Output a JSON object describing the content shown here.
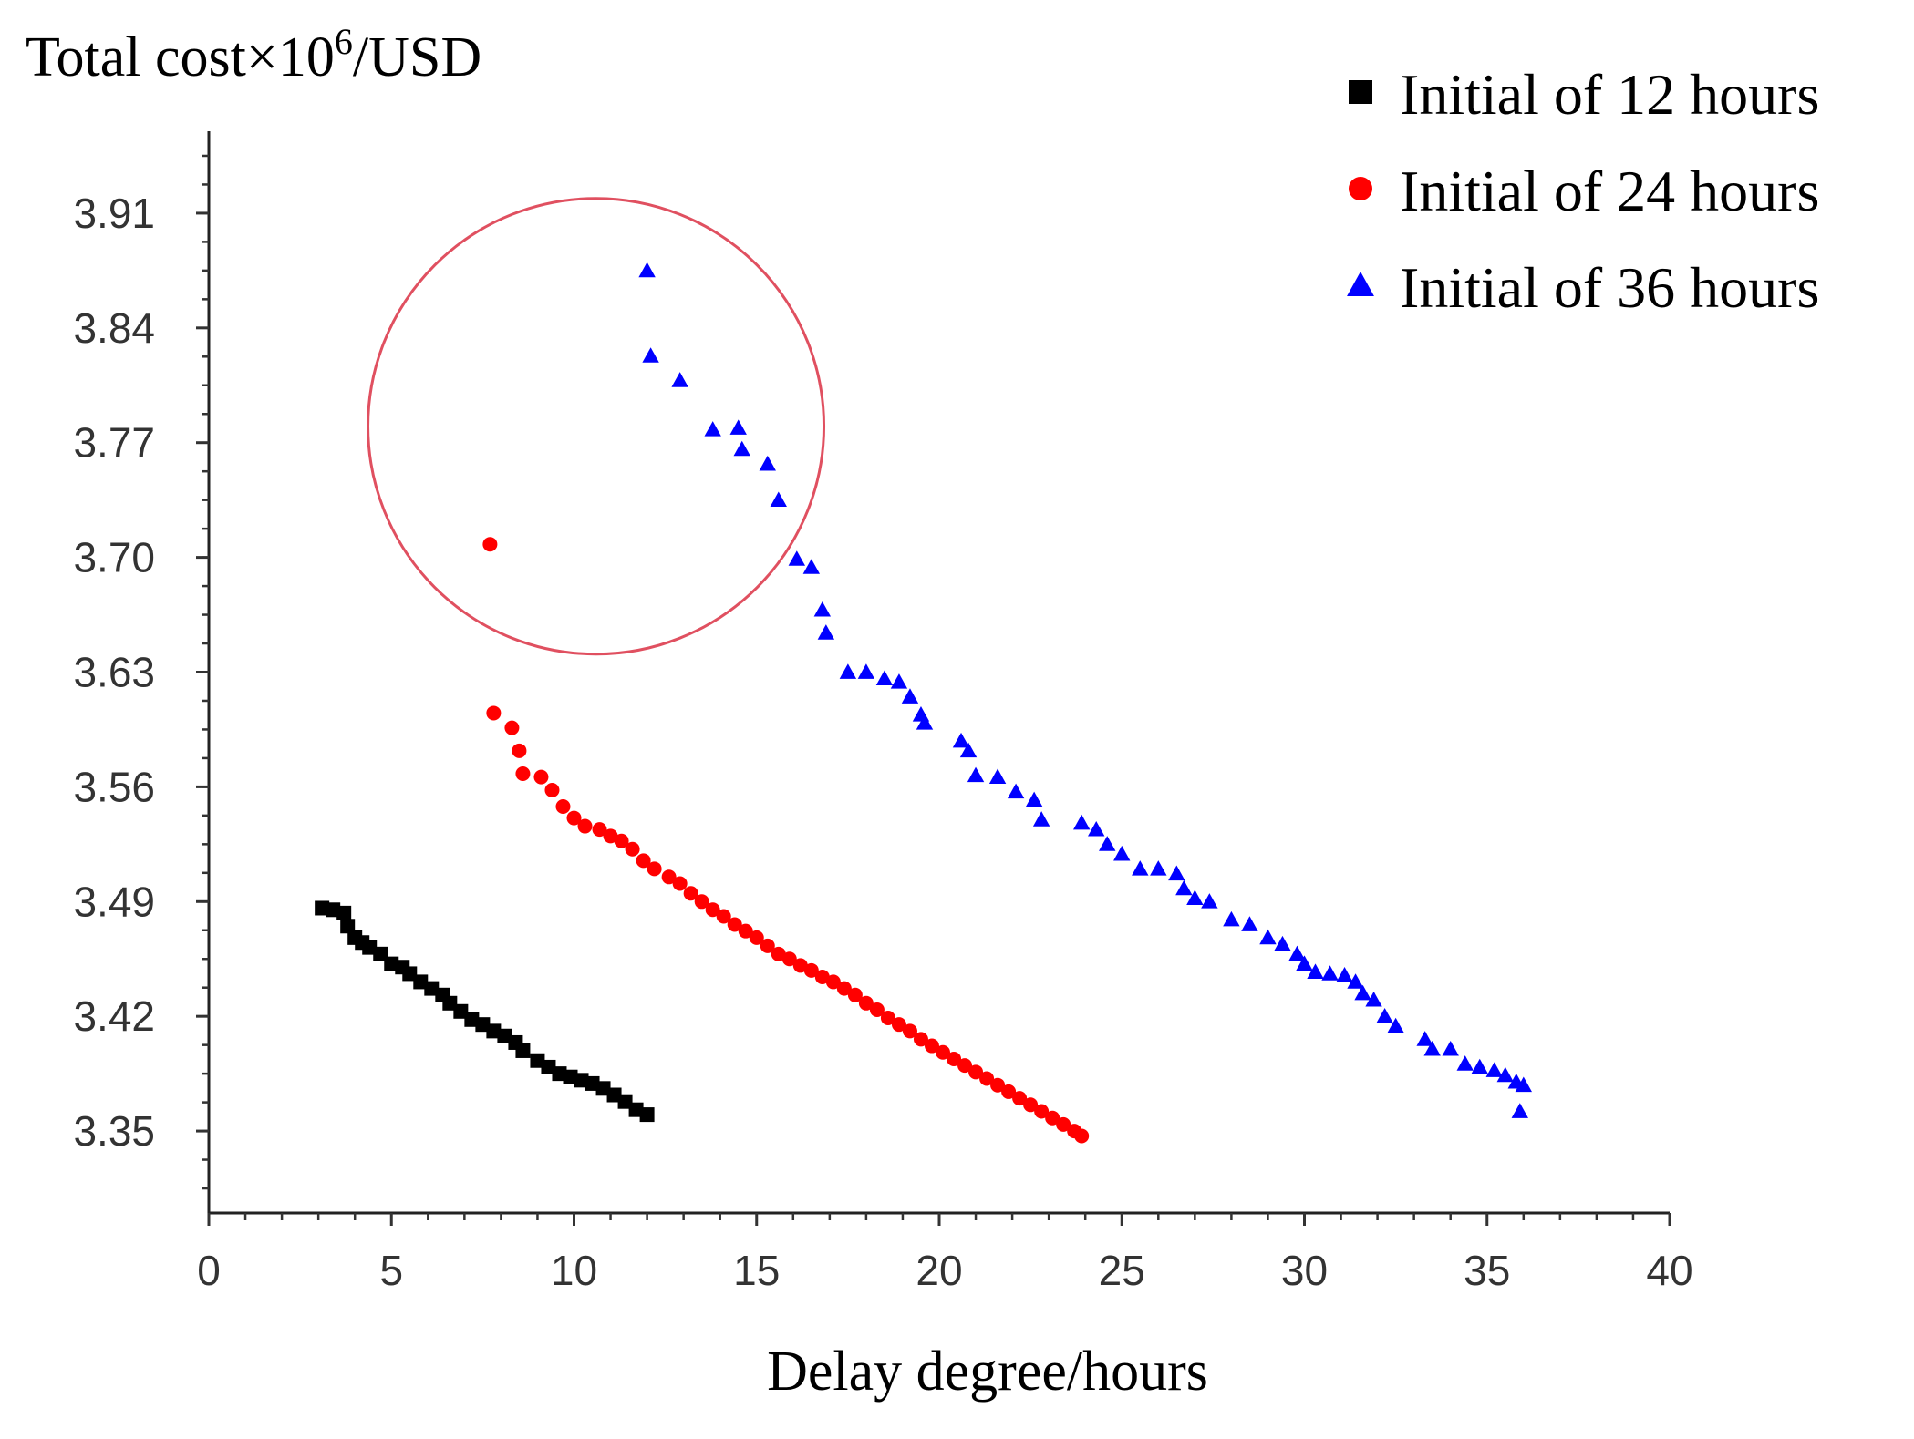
{
  "chart_data": {
    "type": "scatter",
    "ylabel": "Total cost×10",
    "ylabel_sup": "6",
    "ylabel_unit": "/USD",
    "xlabel": "Delay degree/hours",
    "xlim": [
      0,
      40
    ],
    "ylim": [
      3.3,
      3.96
    ],
    "x_ticks": [
      0,
      5,
      10,
      15,
      20,
      25,
      30,
      35,
      40
    ],
    "x_tick_labels": [
      "0",
      "5",
      "10",
      "15",
      "20",
      "25",
      "30",
      "35",
      "40"
    ],
    "y_ticks": [
      3.35,
      3.42,
      3.49,
      3.56,
      3.63,
      3.7,
      3.77,
      3.84,
      3.91
    ],
    "y_tick_labels": [
      "3.35",
      "3.42",
      "3.49",
      "3.56",
      "3.63",
      "3.70",
      "3.77",
      "3.84",
      "3.91"
    ],
    "grid": false,
    "legend_position": "top-right",
    "annotation": {
      "type": "circle",
      "center": [
        10.6,
        3.78
      ],
      "color": "#e05060"
    },
    "series": [
      {
        "name": "Initial of 12 hours",
        "marker": "square",
        "color": "#000000",
        "points": [
          [
            3.1,
            3.486
          ],
          [
            3.4,
            3.485
          ],
          [
            3.7,
            3.483
          ],
          [
            3.8,
            3.475
          ],
          [
            4.0,
            3.468
          ],
          [
            4.2,
            3.465
          ],
          [
            4.4,
            3.462
          ],
          [
            4.7,
            3.458
          ],
          [
            5.0,
            3.452
          ],
          [
            5.3,
            3.45
          ],
          [
            5.5,
            3.446
          ],
          [
            5.8,
            3.441
          ],
          [
            6.1,
            3.437
          ],
          [
            6.4,
            3.433
          ],
          [
            6.6,
            3.428
          ],
          [
            6.9,
            3.423
          ],
          [
            7.2,
            3.418
          ],
          [
            7.5,
            3.415
          ],
          [
            7.8,
            3.411
          ],
          [
            8.1,
            3.408
          ],
          [
            8.4,
            3.404
          ],
          [
            8.6,
            3.399
          ],
          [
            9.0,
            3.393
          ],
          [
            9.3,
            3.389
          ],
          [
            9.6,
            3.385
          ],
          [
            9.9,
            3.383
          ],
          [
            10.2,
            3.381
          ],
          [
            10.5,
            3.379
          ],
          [
            10.8,
            3.376
          ],
          [
            11.1,
            3.372
          ],
          [
            11.4,
            3.368
          ],
          [
            11.7,
            3.363
          ],
          [
            12.0,
            3.36
          ]
        ]
      },
      {
        "name": "Initial of 24 hours",
        "marker": "circle",
        "color": "#ff0000",
        "points": [
          [
            7.7,
            3.708
          ],
          [
            7.8,
            3.605
          ],
          [
            8.3,
            3.596
          ],
          [
            8.5,
            3.582
          ],
          [
            8.6,
            3.568
          ],
          [
            9.1,
            3.566
          ],
          [
            9.4,
            3.558
          ],
          [
            9.7,
            3.548
          ],
          [
            10.0,
            3.541
          ],
          [
            10.3,
            3.536
          ],
          [
            10.7,
            3.534
          ],
          [
            11.0,
            3.53
          ],
          [
            11.3,
            3.527
          ],
          [
            11.6,
            3.522
          ],
          [
            11.9,
            3.515
          ],
          [
            12.2,
            3.51
          ],
          [
            12.6,
            3.505
          ],
          [
            12.9,
            3.501
          ],
          [
            13.2,
            3.495
          ],
          [
            13.5,
            3.49
          ],
          [
            13.8,
            3.485
          ],
          [
            14.1,
            3.481
          ],
          [
            14.4,
            3.476
          ],
          [
            14.7,
            3.472
          ],
          [
            15.0,
            3.468
          ],
          [
            15.3,
            3.463
          ],
          [
            15.6,
            3.458
          ],
          [
            15.9,
            3.455
          ],
          [
            16.2,
            3.451
          ],
          [
            16.5,
            3.448
          ],
          [
            16.8,
            3.444
          ],
          [
            17.1,
            3.441
          ],
          [
            17.4,
            3.437
          ],
          [
            17.7,
            3.433
          ],
          [
            18.0,
            3.428
          ],
          [
            18.3,
            3.424
          ],
          [
            18.6,
            3.419
          ],
          [
            18.9,
            3.415
          ],
          [
            19.2,
            3.411
          ],
          [
            19.5,
            3.406
          ],
          [
            19.8,
            3.402
          ],
          [
            20.1,
            3.398
          ],
          [
            20.4,
            3.394
          ],
          [
            20.7,
            3.39
          ],
          [
            21.0,
            3.386
          ],
          [
            21.3,
            3.382
          ],
          [
            21.6,
            3.378
          ],
          [
            21.9,
            3.374
          ],
          [
            22.2,
            3.37
          ],
          [
            22.5,
            3.366
          ],
          [
            22.8,
            3.362
          ],
          [
            23.1,
            3.358
          ],
          [
            23.4,
            3.354
          ],
          [
            23.7,
            3.35
          ],
          [
            23.9,
            3.347
          ]
        ]
      },
      {
        "name": "Initial of 36 hours",
        "marker": "triangle",
        "color": "#0000ff",
        "points": [
          [
            12.0,
            3.875
          ],
          [
            12.1,
            3.823
          ],
          [
            12.9,
            3.808
          ],
          [
            13.8,
            3.778
          ],
          [
            14.5,
            3.779
          ],
          [
            14.6,
            3.766
          ],
          [
            15.3,
            3.757
          ],
          [
            15.6,
            3.735
          ],
          [
            16.1,
            3.699
          ],
          [
            16.5,
            3.694
          ],
          [
            16.8,
            3.668
          ],
          [
            16.9,
            3.654
          ],
          [
            17.5,
            3.63
          ],
          [
            18.0,
            3.63
          ],
          [
            18.5,
            3.626
          ],
          [
            18.9,
            3.624
          ],
          [
            19.2,
            3.615
          ],
          [
            19.5,
            3.604
          ],
          [
            19.6,
            3.599
          ],
          [
            20.6,
            3.588
          ],
          [
            20.8,
            3.582
          ],
          [
            21.0,
            3.567
          ],
          [
            21.6,
            3.566
          ],
          [
            22.1,
            3.557
          ],
          [
            22.6,
            3.552
          ],
          [
            22.8,
            3.54
          ],
          [
            23.9,
            3.538
          ],
          [
            24.3,
            3.534
          ],
          [
            24.6,
            3.525
          ],
          [
            25.0,
            3.519
          ],
          [
            25.5,
            3.51
          ],
          [
            26.0,
            3.51
          ],
          [
            26.5,
            3.507
          ],
          [
            26.7,
            3.498
          ],
          [
            27.0,
            3.492
          ],
          [
            27.4,
            3.49
          ],
          [
            28.0,
            3.479
          ],
          [
            28.5,
            3.476
          ],
          [
            29.0,
            3.468
          ],
          [
            29.4,
            3.464
          ],
          [
            29.8,
            3.458
          ],
          [
            30.0,
            3.452
          ],
          [
            30.3,
            3.447
          ],
          [
            30.7,
            3.446
          ],
          [
            31.1,
            3.445
          ],
          [
            31.4,
            3.441
          ],
          [
            31.6,
            3.434
          ],
          [
            31.9,
            3.43
          ],
          [
            32.2,
            3.42
          ],
          [
            32.5,
            3.414
          ],
          [
            33.3,
            3.406
          ],
          [
            33.5,
            3.4
          ],
          [
            34.0,
            3.4
          ],
          [
            34.4,
            3.391
          ],
          [
            34.8,
            3.389
          ],
          [
            35.2,
            3.387
          ],
          [
            35.5,
            3.384
          ],
          [
            35.8,
            3.38
          ],
          [
            36.0,
            3.378
          ],
          [
            35.9,
            3.362
          ]
        ]
      }
    ]
  }
}
